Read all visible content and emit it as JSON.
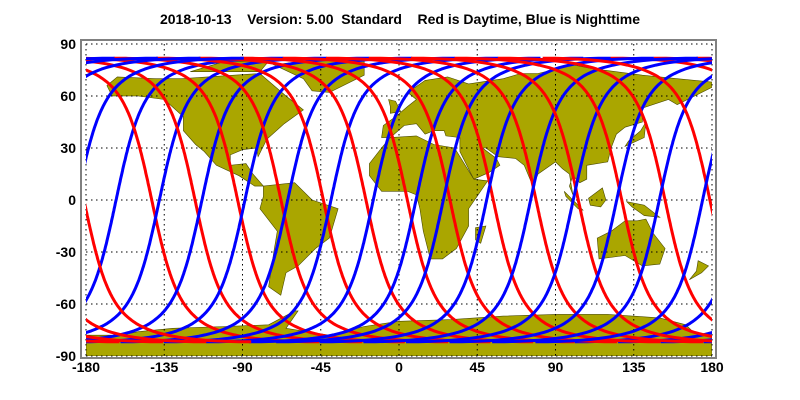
{
  "chart_data": {
    "type": "line",
    "title": "2018-10-13    Version: 5.00  Standard    Red is Daytime, Blue is Nighttime",
    "xlabel": "",
    "ylabel": "",
    "xlim": [
      -180,
      180
    ],
    "ylim": [
      -90,
      90
    ],
    "x_ticks": [
      "-180",
      "-135",
      "-90",
      "-45",
      "0",
      "45",
      "90",
      "135",
      "180"
    ],
    "y_ticks": [
      "90",
      "60",
      "30",
      "0",
      "-30",
      "-60",
      "-90"
    ],
    "grid": true,
    "background": "world map",
    "land_color": "#aaa600",
    "series": [
      {
        "color": "#ff0000",
        "pass": "ascending",
        "equator_crossing_lon": [
          -142.2,
          -117.3,
          -92.8,
          -67.9,
          -43.5,
          -19.0,
          4.8,
          29.3,
          54.2,
          78.8,
          103.1,
          128.1,
          153.0,
          178.8
        ]
      },
      {
        "color": "#0000ff",
        "pass": "descending",
        "equator_crossing_lon": [
          -162.7,
          -137.8,
          -113.3,
          -88.6,
          -64.0,
          -39.1,
          -14.8,
          9.8,
          25.5,
          50.4,
          75.7,
          100.2,
          125.2,
          149.7,
          174.6
        ]
      }
    ]
  }
}
